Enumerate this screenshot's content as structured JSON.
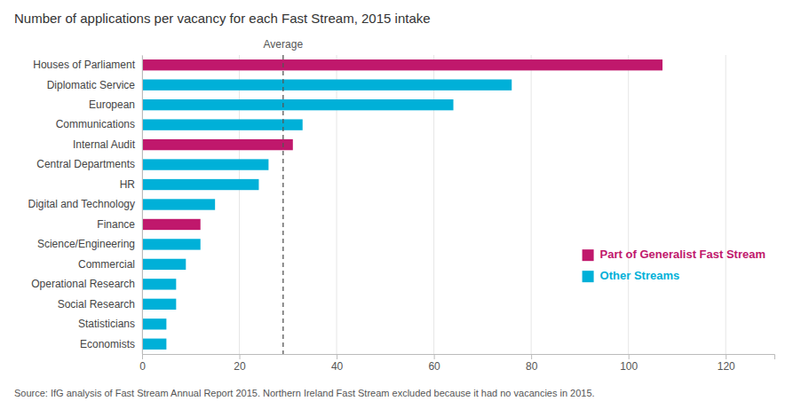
{
  "chart_data": {
    "type": "bar",
    "orientation": "horizontal",
    "title": "Number of applications per vacancy for each Fast Stream, 2015 intake",
    "categories": [
      "Houses of Parliament",
      "Diplomatic Service",
      "European",
      "Communications",
      "Internal Audit",
      "Central Departments",
      "HR",
      "Digital and Technology",
      "Finance",
      "Science/Engineering",
      "Commercial",
      "Operational Research",
      "Social Research",
      "Statisticians",
      "Economists"
    ],
    "values": [
      107,
      76,
      64,
      33,
      31,
      26,
      24,
      15,
      12,
      12,
      9,
      7,
      7,
      5,
      5
    ],
    "colors": [
      "#c0186c",
      "#00b0d8",
      "#00b0d8",
      "#00b0d8",
      "#c0186c",
      "#00b0d8",
      "#00b0d8",
      "#00b0d8",
      "#c0186c",
      "#00b0d8",
      "#00b0d8",
      "#00b0d8",
      "#00b0d8",
      "#00b0d8",
      "#00b0d8"
    ],
    "xlim": [
      0,
      130
    ],
    "xticks": [
      0,
      20,
      40,
      60,
      80,
      100,
      120
    ],
    "grid": true,
    "reference_lines": [
      {
        "value": 29,
        "label": "Average"
      }
    ],
    "legend": "lower right",
    "legend_entries": [
      {
        "name": "Part of Generalist Fast Stream",
        "color": "#c0186c"
      },
      {
        "name": "Other Streams",
        "color": "#00b0d8"
      }
    ],
    "source": "Source: IfG analysis of Fast Stream Annual Report 2015. Northern Ireland Fast Stream excluded because it had no vacancies in 2015."
  }
}
